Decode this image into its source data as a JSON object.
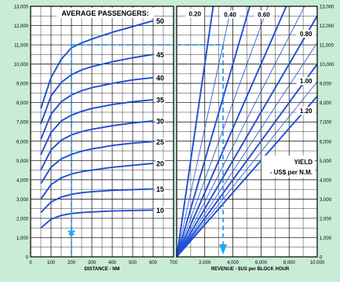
{
  "chart_data": [
    {
      "type": "line",
      "title": "AVERAGE PASSENGERS:",
      "xlabel": "DISTANCE - NM",
      "ylabel": "",
      "xlim": [
        0,
        700
      ],
      "ylim": [
        0,
        13000
      ],
      "xticks": [
        "0",
        "100",
        "200",
        "300",
        "400",
        "500",
        "600",
        "700"
      ],
      "yticks": [
        "0",
        "1,000",
        "2,000",
        "3,000",
        "4,000",
        "5,000",
        "6,000",
        "7,000",
        "8,000",
        "9,000",
        "10,000",
        "11,000",
        "12,000",
        "13,000"
      ],
      "grid": true,
      "x": [
        50,
        100,
        150,
        200,
        250,
        300,
        400,
        500,
        600
      ],
      "series": [
        {
          "name": "10",
          "values": [
            1500,
            1950,
            2150,
            2250,
            2300,
            2330,
            2380,
            2410,
            2430
          ]
        },
        {
          "name": "15",
          "values": [
            2300,
            2850,
            3100,
            3250,
            3330,
            3380,
            3450,
            3490,
            3520
          ]
        },
        {
          "name": "20",
          "values": [
            3000,
            3750,
            4100,
            4300,
            4420,
            4500,
            4650,
            4750,
            4850
          ]
        },
        {
          "name": "25",
          "values": [
            3800,
            4650,
            5080,
            5320,
            5480,
            5600,
            5780,
            5900,
            5980
          ]
        },
        {
          "name": "30",
          "values": [
            4500,
            5550,
            6050,
            6330,
            6500,
            6620,
            6800,
            6950,
            7050
          ]
        },
        {
          "name": "35",
          "values": [
            5300,
            6450,
            7050,
            7350,
            7550,
            7700,
            7900,
            8050,
            8150
          ]
        },
        {
          "name": "40",
          "values": [
            6100,
            7400,
            8050,
            8400,
            8620,
            8780,
            9000,
            9180,
            9300
          ]
        },
        {
          "name": "45",
          "values": [
            6900,
            8350,
            9050,
            9450,
            9700,
            9870,
            10120,
            10330,
            10500
          ]
        },
        {
          "name": "50",
          "values": [
            7700,
            9300,
            10250,
            10850,
            11100,
            11300,
            11650,
            11950,
            12250
          ]
        }
      ],
      "annotation": {
        "marker": "*",
        "x": 200,
        "reference_y": 11000
      }
    },
    {
      "type": "line",
      "title": "YIELD - US$ per N.M.",
      "xlabel": "REVENUE - $US per BLOCK HOUR",
      "ylabel": "",
      "xlim": [
        0,
        10000
      ],
      "ylim": [
        0,
        13000
      ],
      "xticks": [
        "",
        "2,000",
        "4,000",
        "6,000",
        "8,000",
        "10,000"
      ],
      "yticks": [
        "0",
        "1,000",
        "2,000",
        "3,000",
        "4,000",
        "5,000",
        "6,000",
        "7,000",
        "8,000",
        "9,000",
        "10,000",
        "11,000",
        "12,000",
        "13,000"
      ],
      "grid": true,
      "yield_lines": [
        {
          "label": "0.20",
          "slope": 0.2,
          "bold": true,
          "labeled": true
        },
        {
          "label": "",
          "slope": 0.3,
          "bold": false,
          "labeled": false
        },
        {
          "label": "0.40",
          "slope": 0.4,
          "bold": true,
          "labeled": true
        },
        {
          "label": "",
          "slope": 0.5,
          "bold": false,
          "labeled": false
        },
        {
          "label": "0.60",
          "slope": 0.6,
          "bold": true,
          "labeled": true
        },
        {
          "label": "",
          "slope": 0.7,
          "bold": false,
          "labeled": false
        },
        {
          "label": "0.80",
          "slope": 0.8,
          "bold": true,
          "labeled": true
        },
        {
          "label": "",
          "slope": 0.9,
          "bold": false,
          "labeled": false
        },
        {
          "label": "1.00",
          "slope": 1.0,
          "bold": true,
          "labeled": true
        },
        {
          "label": "",
          "slope": 1.1,
          "bold": false,
          "labeled": false
        },
        {
          "label": "1.20",
          "slope": 1.2,
          "bold": true,
          "labeled": true
        }
      ],
      "annotation": {
        "reference_y": 11000,
        "revenue_x": 3300
      }
    }
  ]
}
